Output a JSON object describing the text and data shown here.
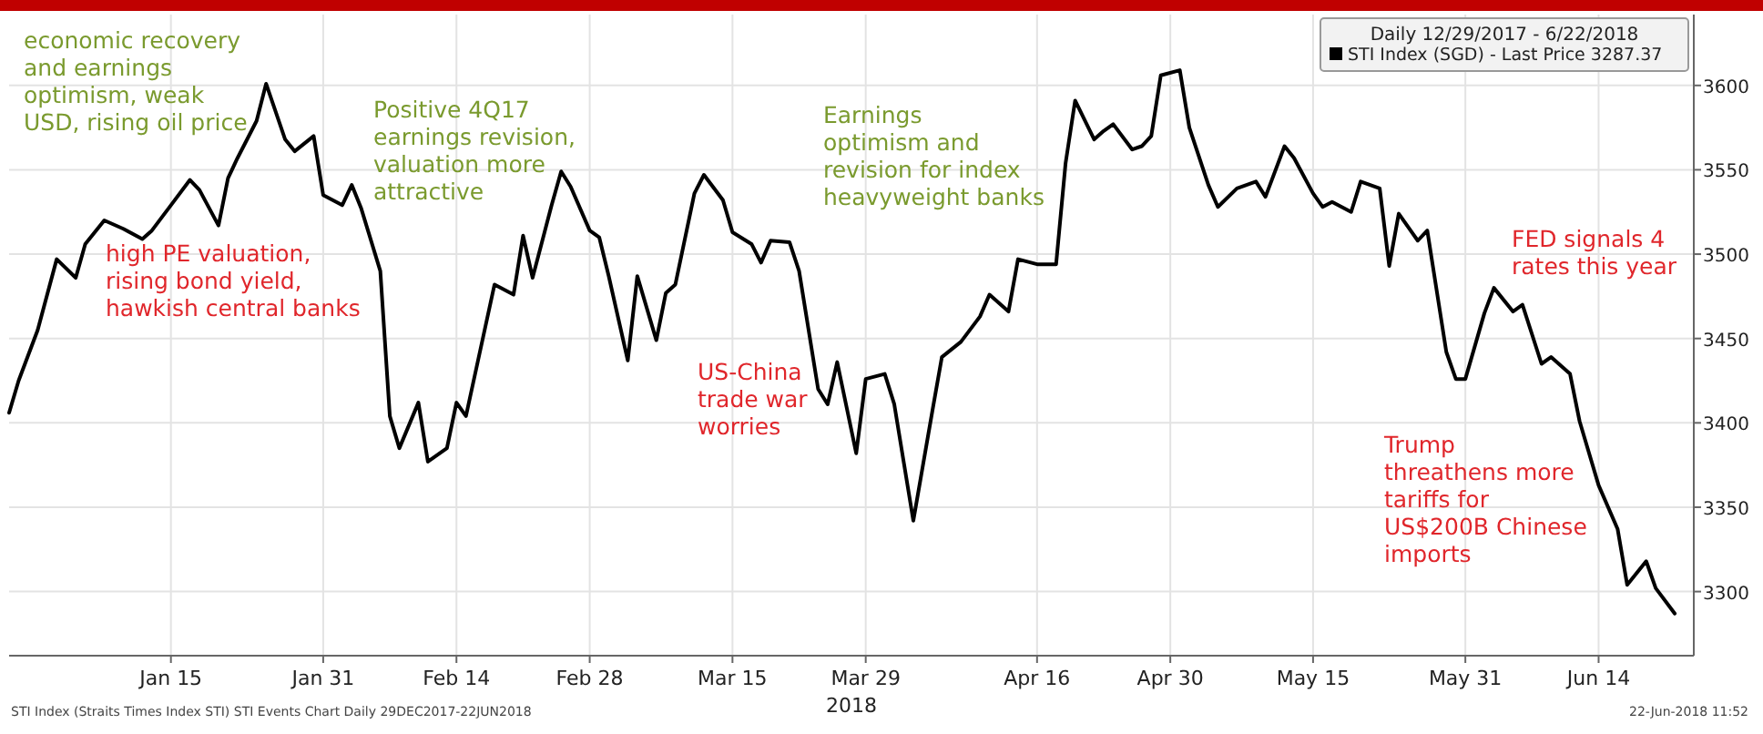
{
  "chart_data": {
    "type": "line",
    "xlabel": "2018",
    "legend_title": "Daily 12/29/2017 - 6/22/2018",
    "legend": "top right",
    "grid": true,
    "marker": "none",
    "line_style": "solid",
    "xlim": [
      "2017-12-29",
      "2018-06-24"
    ],
    "xticks": [
      {
        "value": "2018-01-15",
        "label": "Jan 15"
      },
      {
        "value": "2018-01-31",
        "label": "Jan 31"
      },
      {
        "value": "2018-02-14",
        "label": "Feb 14"
      },
      {
        "value": "2018-02-28",
        "label": "Feb 28"
      },
      {
        "value": "2018-03-15",
        "label": "Mar 15"
      },
      {
        "value": "2018-03-29",
        "label": "Mar 29"
      },
      {
        "value": "2018-04-16",
        "label": "Apr 16"
      },
      {
        "value": "2018-04-30",
        "label": "Apr 30"
      },
      {
        "value": "2018-05-15",
        "label": "May 15"
      },
      {
        "value": "2018-05-31",
        "label": "May 31"
      },
      {
        "value": "2018-06-14",
        "label": "Jun 14"
      }
    ],
    "ylim": [
      3262,
      3642
    ],
    "yticks": [
      3300,
      3350,
      3400,
      3450,
      3500,
      3550,
      3600
    ],
    "x": [
      "2017-12-29",
      "2017-12-30",
      "2018-01-01",
      "2018-01-03",
      "2018-01-05",
      "2018-01-06",
      "2018-01-08",
      "2018-01-10",
      "2018-01-12",
      "2018-01-13",
      "2018-01-15",
      "2018-01-17",
      "2018-01-18",
      "2018-01-20",
      "2018-01-21",
      "2018-01-22",
      "2018-01-24",
      "2018-01-25",
      "2018-01-27",
      "2018-01-28",
      "2018-01-30",
      "2018-01-31",
      "2018-02-02",
      "2018-02-03",
      "2018-02-04",
      "2018-02-06",
      "2018-02-07",
      "2018-02-08",
      "2018-02-10",
      "2018-02-11",
      "2018-02-13",
      "2018-02-14",
      "2018-02-15",
      "2018-02-18",
      "2018-02-20",
      "2018-02-21",
      "2018-02-22",
      "2018-02-24",
      "2018-02-25",
      "2018-02-26",
      "2018-02-28",
      "2018-03-01",
      "2018-03-02",
      "2018-03-04",
      "2018-03-05",
      "2018-03-07",
      "2018-03-08",
      "2018-03-09",
      "2018-03-11",
      "2018-03-12",
      "2018-03-14",
      "2018-03-15",
      "2018-03-17",
      "2018-03-18",
      "2018-03-19",
      "2018-03-21",
      "2018-03-22",
      "2018-03-24",
      "2018-03-25",
      "2018-03-26",
      "2018-03-28",
      "2018-03-29",
      "2018-03-31",
      "2018-04-01",
      "2018-04-03",
      "2018-04-05",
      "2018-04-06",
      "2018-04-08",
      "2018-04-10",
      "2018-04-11",
      "2018-04-13",
      "2018-04-14",
      "2018-04-16",
      "2018-04-18",
      "2018-04-19",
      "2018-04-20",
      "2018-04-22",
      "2018-04-23",
      "2018-04-24",
      "2018-04-26",
      "2018-04-27",
      "2018-04-28",
      "2018-04-29",
      "2018-05-01",
      "2018-05-02",
      "2018-05-04",
      "2018-05-05",
      "2018-05-07",
      "2018-05-09",
      "2018-05-10",
      "2018-05-12",
      "2018-05-13",
      "2018-05-15",
      "2018-05-16",
      "2018-05-17",
      "2018-05-19",
      "2018-05-20",
      "2018-05-22",
      "2018-05-23",
      "2018-05-24",
      "2018-05-26",
      "2018-05-27",
      "2018-05-29",
      "2018-05-30",
      "2018-05-31",
      "2018-06-02",
      "2018-06-03",
      "2018-06-05",
      "2018-06-06",
      "2018-06-08",
      "2018-06-09",
      "2018-06-11",
      "2018-06-12",
      "2018-06-14",
      "2018-06-16",
      "2018-06-17",
      "2018-06-19",
      "2018-06-20",
      "2018-06-22"
    ],
    "series": [
      {
        "name": "STI Index (SGD) - Last Price 3287.37",
        "color": "#000000",
        "values": [
          3406,
          3425,
          3455,
          3497,
          3486,
          3506,
          3520,
          3515,
          3509,
          3514,
          3529,
          3544,
          3538,
          3517,
          3545,
          3557,
          3579,
          3601,
          3568,
          3561,
          3570,
          3535,
          3529,
          3541,
          3527,
          3490,
          3404,
          3385,
          3412,
          3377,
          3385,
          3412,
          3404,
          3482,
          3476,
          3511,
          3486,
          3529,
          3549,
          3540,
          3514,
          3510,
          3487,
          3437,
          3487,
          3449,
          3477,
          3482,
          3536,
          3547,
          3532,
          3513,
          3506,
          3495,
          3508,
          3507,
          3490,
          3420,
          3411,
          3436,
          3382,
          3426,
          3429,
          3411,
          3342,
          3407,
          3439,
          3448,
          3463,
          3476,
          3466,
          3497,
          3494,
          3494,
          3554,
          3591,
          3568,
          3573,
          3577,
          3562,
          3564,
          3570,
          3606,
          3609,
          3575,
          3541,
          3528,
          3539,
          3543,
          3534,
          3564,
          3557,
          3536,
          3528,
          3531,
          3525,
          3543,
          3539,
          3493,
          3524,
          3508,
          3514,
          3442,
          3426,
          3426,
          3465,
          3480,
          3466,
          3470,
          3435,
          3439,
          3429,
          3401,
          3363,
          3337,
          3304,
          3318,
          3302,
          3287
        ]
      }
    ],
    "annotations": [
      "economic recovery\nand earnings\noptimism, weak\nUSD, rising oil price",
      "high PE valuation,\nrising bond yield,\nhawkish central banks",
      "Positive 4Q17\nearnings revision,\nvaluation more\nattractive",
      "US-China\ntrade war\nworries",
      "Earnings\noptimism and\nrevision for index\nheavyweight banks",
      "FED signals 4\nrates this year",
      "Trump\nthreathens more\ntariffs for\nUS$200B Chinese\nimports",
      "STI Index (Straits Times Index STI) STI Events Chart  Daily 29DEC2017-22JUN2018",
      "22-Jun-2018 11:52"
    ]
  }
}
